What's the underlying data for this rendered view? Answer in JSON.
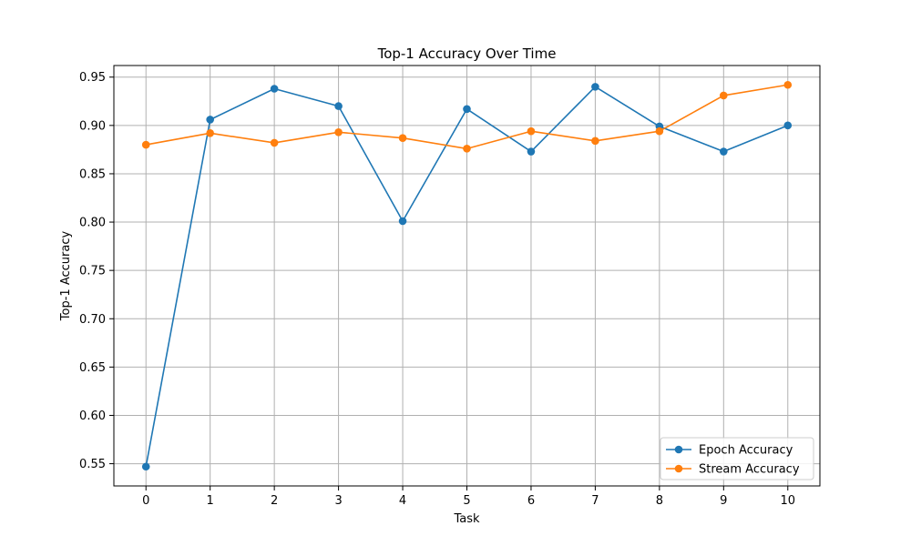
{
  "chart_data": {
    "type": "line",
    "title": "Top-1 Accuracy Over Time",
    "xlabel": "Task",
    "ylabel": "Top-1 Accuracy",
    "x": [
      0,
      1,
      2,
      3,
      4,
      5,
      6,
      7,
      8,
      9,
      10
    ],
    "xlim": [
      -0.5,
      10.5
    ],
    "ylim": [
      0.527,
      0.962
    ],
    "xticks": [
      "0",
      "1",
      "2",
      "3",
      "4",
      "5",
      "6",
      "7",
      "8",
      "9",
      "10"
    ],
    "yticks": [
      "0.55",
      "0.60",
      "0.65",
      "0.70",
      "0.75",
      "0.80",
      "0.85",
      "0.90",
      "0.95"
    ],
    "grid": true,
    "legend_position": "bottom-right",
    "series": [
      {
        "name": "Epoch Accuracy",
        "color": "#1f77b4",
        "marker": "circle",
        "values": [
          0.547,
          0.906,
          0.938,
          0.92,
          0.801,
          0.917,
          0.873,
          0.94,
          0.899,
          0.873,
          0.9
        ]
      },
      {
        "name": "Stream Accuracy",
        "color": "#ff7f0e",
        "marker": "circle",
        "values": [
          0.88,
          0.892,
          0.882,
          0.893,
          0.887,
          0.876,
          0.894,
          0.884,
          0.894,
          0.931,
          0.942
        ]
      }
    ]
  }
}
